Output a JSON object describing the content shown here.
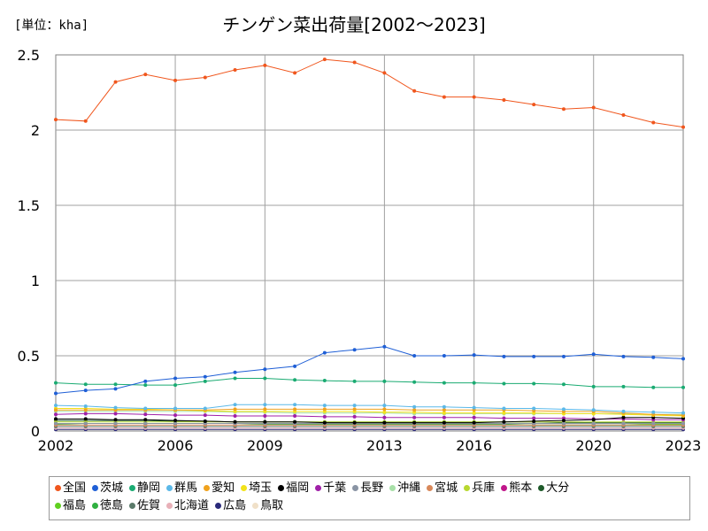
{
  "chart_data": {
    "type": "line",
    "title": "チンゲン菜出荷量[2002～2023]",
    "unit_label": "[単位：kha]",
    "xlabel": "",
    "ylabel": "",
    "x": [
      2002,
      2003,
      2004,
      2005,
      2006,
      2007,
      2008,
      2009,
      2010,
      2011,
      2012,
      2013,
      2014,
      2015,
      2016,
      2017,
      2018,
      2019,
      2020,
      2021,
      2022,
      2023
    ],
    "xticks": [
      2002,
      2006,
      2009,
      2013,
      2016,
      2020,
      2023
    ],
    "yticks": [
      "0",
      "0.5",
      "1",
      "1.5",
      "2",
      "2.5"
    ],
    "ylim": [
      0,
      2.5
    ],
    "grid": true,
    "legend_position": "bottom",
    "series": [
      {
        "name": "全国",
        "color": "#f0561d",
        "values": [
          2.07,
          2.06,
          2.32,
          2.37,
          2.33,
          2.35,
          2.4,
          2.43,
          2.38,
          2.47,
          2.45,
          2.38,
          2.26,
          2.22,
          2.22,
          2.2,
          2.17,
          2.14,
          2.15,
          2.1,
          2.05,
          2.02
        ]
      },
      {
        "name": "茨城",
        "color": "#1f5fd6",
        "values": [
          0.25,
          0.27,
          0.28,
          0.33,
          0.35,
          0.36,
          0.39,
          0.41,
          0.43,
          0.52,
          0.54,
          0.56,
          0.5,
          0.5,
          0.505,
          0.495,
          0.495,
          0.495,
          0.51,
          0.495,
          0.49,
          0.48
        ]
      },
      {
        "name": "静岡",
        "color": "#1aab72",
        "values": [
          0.32,
          0.31,
          0.31,
          0.305,
          0.305,
          0.33,
          0.35,
          0.35,
          0.34,
          0.335,
          0.33,
          0.33,
          0.325,
          0.32,
          0.32,
          0.315,
          0.315,
          0.31,
          0.295,
          0.295,
          0.29,
          0.29
        ]
      },
      {
        "name": "群馬",
        "color": "#5bb8e8",
        "values": [
          0.17,
          0.165,
          0.155,
          0.15,
          0.15,
          0.15,
          0.175,
          0.175,
          0.175,
          0.17,
          0.17,
          0.17,
          0.16,
          0.16,
          0.155,
          0.15,
          0.15,
          0.145,
          0.14,
          0.13,
          0.125,
          0.12
        ]
      },
      {
        "name": "愛知",
        "color": "#f0a21d",
        "values": [
          0.14,
          0.14,
          0.14,
          0.14,
          0.14,
          0.14,
          0.145,
          0.145,
          0.145,
          0.145,
          0.145,
          0.145,
          0.14,
          0.14,
          0.14,
          0.14,
          0.135,
          0.13,
          0.13,
          0.12,
          0.11,
          0.105
        ]
      },
      {
        "name": "埼玉",
        "color": "#f2e21a",
        "values": [
          0.15,
          0.15,
          0.145,
          0.145,
          0.14,
          0.135,
          0.13,
          0.13,
          0.13,
          0.13,
          0.13,
          0.125,
          0.125,
          0.12,
          0.12,
          0.12,
          0.12,
          0.115,
          0.115,
          0.11,
          0.105,
          0.1
        ]
      },
      {
        "name": "福岡",
        "color": "#000000",
        "values": [
          0.08,
          0.08,
          0.075,
          0.075,
          0.07,
          0.065,
          0.06,
          0.06,
          0.06,
          0.055,
          0.055,
          0.055,
          0.055,
          0.055,
          0.055,
          0.06,
          0.065,
          0.07,
          0.075,
          0.09,
          0.09,
          0.085
        ]
      },
      {
        "name": "千葉",
        "color": "#a020a8",
        "values": [
          0.11,
          0.115,
          0.115,
          0.11,
          0.105,
          0.105,
          0.1,
          0.1,
          0.1,
          0.095,
          0.095,
          0.09,
          0.09,
          0.09,
          0.09,
          0.085,
          0.085,
          0.085,
          0.08,
          0.08,
          0.075,
          0.075
        ]
      },
      {
        "name": "長野",
        "color": "#8a94a4",
        "values": [
          0.05,
          0.05,
          0.05,
          0.05,
          0.05,
          0.05,
          0.05,
          0.05,
          0.05,
          0.05,
          0.05,
          0.05,
          0.05,
          0.05,
          0.05,
          0.05,
          0.05,
          0.05,
          0.05,
          0.05,
          0.05,
          0.05
        ]
      },
      {
        "name": "沖縄",
        "color": "#a8e0a8",
        "values": [
          0.13,
          0.13,
          0.13,
          0.13,
          0.13,
          0.13,
          0.125,
          0.125,
          0.12,
          0.12,
          0.12,
          0.12,
          0.115,
          0.115,
          0.115,
          0.115,
          0.115,
          0.115,
          0.115,
          0.115,
          0.11,
          0.11
        ]
      },
      {
        "name": "宮城",
        "color": "#d8885a",
        "values": [
          0.04,
          0.04,
          0.04,
          0.04,
          0.04,
          0.04,
          0.04,
          0.04,
          0.04,
          0.04,
          0.04,
          0.04,
          0.04,
          0.04,
          0.04,
          0.04,
          0.04,
          0.04,
          0.04,
          0.04,
          0.04,
          0.04
        ]
      },
      {
        "name": "兵庫",
        "color": "#b8d830",
        "values": [
          0.06,
          0.06,
          0.06,
          0.06,
          0.06,
          0.06,
          0.06,
          0.06,
          0.06,
          0.06,
          0.06,
          0.06,
          0.06,
          0.06,
          0.06,
          0.06,
          0.06,
          0.06,
          0.06,
          0.06,
          0.06,
          0.06
        ]
      },
      {
        "name": "熊本",
        "color": "#c0168a",
        "values": [
          0.05,
          0.05,
          0.05,
          0.05,
          0.05,
          0.05,
          0.05,
          0.05,
          0.05,
          0.05,
          0.05,
          0.05,
          0.05,
          0.05,
          0.05,
          0.05,
          0.05,
          0.05,
          0.05,
          0.05,
          0.05,
          0.05
        ]
      },
      {
        "name": "大分",
        "color": "#1e5a2a",
        "values": [
          0.07,
          0.07,
          0.07,
          0.07,
          0.065,
          0.065,
          0.06,
          0.06,
          0.06,
          0.06,
          0.06,
          0.06,
          0.06,
          0.06,
          0.06,
          0.06,
          0.06,
          0.055,
          0.055,
          0.055,
          0.055,
          0.055
        ]
      },
      {
        "name": "福島",
        "color": "#60d020",
        "values": [
          0.05,
          0.05,
          0.05,
          0.05,
          0.05,
          0.05,
          0.05,
          0.05,
          0.05,
          0.05,
          0.05,
          0.05,
          0.05,
          0.05,
          0.05,
          0.05,
          0.05,
          0.05,
          0.05,
          0.05,
          0.045,
          0.045
        ]
      },
      {
        "name": "徳島",
        "color": "#30b040",
        "values": [
          0.045,
          0.05,
          0.05,
          0.05,
          0.05,
          0.05,
          0.05,
          0.045,
          0.045,
          0.045,
          0.045,
          0.045,
          0.045,
          0.045,
          0.045,
          0.045,
          0.04,
          0.04,
          0.04,
          0.04,
          0.04,
          0.04
        ]
      },
      {
        "name": "佐賀",
        "color": "#5a7a6a",
        "values": [
          0.03,
          0.03,
          0.03,
          0.03,
          0.03,
          0.03,
          0.03,
          0.03,
          0.03,
          0.03,
          0.03,
          0.03,
          0.03,
          0.03,
          0.03,
          0.03,
          0.03,
          0.03,
          0.03,
          0.03,
          0.03,
          0.03
        ]
      },
      {
        "name": "北海道",
        "color": "#e8b0b8",
        "values": [
          0.02,
          0.02,
          0.02,
          0.02,
          0.02,
          0.02,
          0.02,
          0.02,
          0.02,
          0.02,
          0.02,
          0.02,
          0.02,
          0.02,
          0.02,
          0.02,
          0.02,
          0.02,
          0.02,
          0.02,
          0.02,
          0.02
        ]
      },
      {
        "name": "広島",
        "color": "#2a2a7a",
        "values": [
          0.01,
          0.01,
          0.01,
          0.01,
          0.01,
          0.01,
          0.01,
          0.01,
          0.01,
          0.01,
          0.01,
          0.01,
          0.01,
          0.01,
          0.01,
          0.01,
          0.01,
          0.01,
          0.01,
          0.01,
          0.01,
          0.01
        ]
      },
      {
        "name": "鳥取",
        "color": "#f0e0c8",
        "values": [
          0.01,
          0.01,
          0.01,
          0.01,
          0.01,
          0.01,
          0.01,
          0.01,
          0.01,
          0.01,
          0.01,
          0.01,
          0.01,
          0.01,
          0.01,
          0.01,
          0.01,
          0.01,
          0.01,
          0.01,
          0.01,
          0.01
        ]
      }
    ]
  }
}
